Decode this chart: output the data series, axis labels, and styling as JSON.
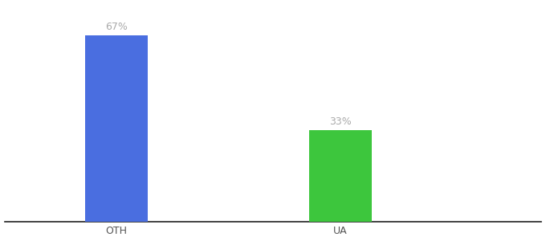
{
  "categories": [
    "OTH",
    "UA"
  ],
  "values": [
    67,
    33
  ],
  "bar_colors": [
    "#4a6ee0",
    "#3dc63d"
  ],
  "label_texts": [
    "67%",
    "33%"
  ],
  "ylim": [
    0,
    78
  ],
  "background_color": "#ffffff",
  "label_color": "#aaaaaa",
  "bar_width": 0.28,
  "label_fontsize": 9,
  "tick_fontsize": 9,
  "x_positions": [
    1,
    2
  ],
  "xlim": [
    0.5,
    2.9
  ]
}
